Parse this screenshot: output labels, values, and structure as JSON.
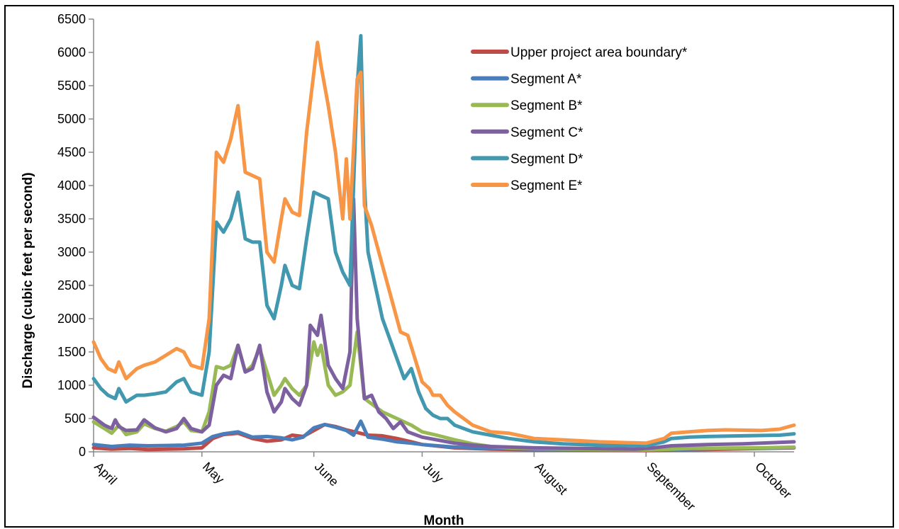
{
  "chart_data": {
    "type": "line",
    "xlabel": "Month",
    "ylabel": "Discharge (cubic feet per second)",
    "ylim": [
      0,
      6500
    ],
    "yticks": [
      0,
      500,
      1000,
      1500,
      2000,
      2500,
      3000,
      3500,
      4000,
      4500,
      5000,
      5500,
      6000,
      6500
    ],
    "x_categories": [
      "April",
      "May",
      "June",
      "July",
      "August",
      "September",
      "October"
    ],
    "x_unit": "day index from April 1",
    "xlim": [
      0,
      194
    ],
    "month_start_days": [
      0,
      30,
      61,
      91,
      122,
      153,
      183
    ],
    "grid": false,
    "legend_position": "top-right",
    "series": [
      {
        "name": "Upper project area boundary*",
        "color": "#be4b48",
        "points": [
          [
            0,
            60
          ],
          [
            5,
            40
          ],
          [
            10,
            50
          ],
          [
            15,
            35
          ],
          [
            20,
            40
          ],
          [
            25,
            45
          ],
          [
            30,
            60
          ],
          [
            33,
            200
          ],
          [
            36,
            260
          ],
          [
            40,
            280
          ],
          [
            44,
            200
          ],
          [
            48,
            160
          ],
          [
            52,
            180
          ],
          [
            55,
            250
          ],
          [
            58,
            230
          ],
          [
            61,
            320
          ],
          [
            64,
            410
          ],
          [
            67,
            380
          ],
          [
            70,
            330
          ],
          [
            73,
            290
          ],
          [
            76,
            250
          ],
          [
            80,
            240
          ],
          [
            84,
            200
          ],
          [
            88,
            150
          ],
          [
            91,
            110
          ],
          [
            100,
            60
          ],
          [
            110,
            40
          ],
          [
            122,
            30
          ],
          [
            135,
            25
          ],
          [
            153,
            20
          ],
          [
            165,
            30
          ],
          [
            175,
            40
          ],
          [
            185,
            50
          ],
          [
            194,
            60
          ]
        ]
      },
      {
        "name": "Segment A*",
        "color": "#4a7ebb",
        "points": [
          [
            0,
            110
          ],
          [
            5,
            80
          ],
          [
            10,
            100
          ],
          [
            15,
            90
          ],
          [
            20,
            95
          ],
          [
            25,
            100
          ],
          [
            30,
            130
          ],
          [
            33,
            230
          ],
          [
            36,
            270
          ],
          [
            40,
            300
          ],
          [
            44,
            220
          ],
          [
            48,
            230
          ],
          [
            52,
            210
          ],
          [
            55,
            180
          ],
          [
            58,
            220
          ],
          [
            61,
            360
          ],
          [
            64,
            410
          ],
          [
            67,
            370
          ],
          [
            70,
            320
          ],
          [
            72,
            250
          ],
          [
            74,
            460
          ],
          [
            76,
            220
          ],
          [
            80,
            190
          ],
          [
            84,
            150
          ],
          [
            88,
            130
          ],
          [
            91,
            110
          ],
          [
            100,
            70
          ],
          [
            110,
            50
          ],
          [
            122,
            40
          ],
          [
            135,
            35
          ],
          [
            153,
            30
          ],
          [
            165,
            40
          ],
          [
            175,
            50
          ],
          [
            185,
            55
          ],
          [
            194,
            65
          ]
        ]
      },
      {
        "name": "Segment B*",
        "color": "#98b954",
        "points": [
          [
            0,
            450
          ],
          [
            3,
            350
          ],
          [
            5,
            280
          ],
          [
            7,
            400
          ],
          [
            9,
            260
          ],
          [
            12,
            300
          ],
          [
            14,
            420
          ],
          [
            17,
            350
          ],
          [
            20,
            310
          ],
          [
            23,
            380
          ],
          [
            25,
            450
          ],
          [
            27,
            320
          ],
          [
            30,
            300
          ],
          [
            32,
            600
          ],
          [
            34,
            1280
          ],
          [
            36,
            1250
          ],
          [
            38,
            1300
          ],
          [
            40,
            1600
          ],
          [
            42,
            1200
          ],
          [
            44,
            1300
          ],
          [
            46,
            1550
          ],
          [
            48,
            1200
          ],
          [
            50,
            850
          ],
          [
            52,
            1000
          ],
          [
            53,
            1100
          ],
          [
            55,
            950
          ],
          [
            57,
            850
          ],
          [
            59,
            1000
          ],
          [
            61,
            1650
          ],
          [
            62,
            1450
          ],
          [
            63,
            1600
          ],
          [
            65,
            1000
          ],
          [
            67,
            850
          ],
          [
            69,
            900
          ],
          [
            71,
            1000
          ],
          [
            73,
            1800
          ],
          [
            75,
            800
          ],
          [
            77,
            720
          ],
          [
            80,
            600
          ],
          [
            84,
            500
          ],
          [
            88,
            400
          ],
          [
            91,
            300
          ],
          [
            95,
            250
          ],
          [
            100,
            180
          ],
          [
            105,
            120
          ],
          [
            110,
            80
          ],
          [
            115,
            60
          ],
          [
            122,
            50
          ],
          [
            130,
            40
          ],
          [
            140,
            35
          ],
          [
            153,
            30
          ],
          [
            160,
            40
          ],
          [
            165,
            50
          ],
          [
            175,
            55
          ],
          [
            185,
            60
          ],
          [
            194,
            70
          ]
        ]
      },
      {
        "name": "Segment C*",
        "color": "#7d60a0",
        "points": [
          [
            0,
            520
          ],
          [
            3,
            400
          ],
          [
            5,
            350
          ],
          [
            6,
            480
          ],
          [
            7,
            380
          ],
          [
            9,
            320
          ],
          [
            12,
            330
          ],
          [
            14,
            480
          ],
          [
            17,
            360
          ],
          [
            20,
            300
          ],
          [
            23,
            350
          ],
          [
            25,
            500
          ],
          [
            27,
            350
          ],
          [
            30,
            300
          ],
          [
            32,
            400
          ],
          [
            34,
            1000
          ],
          [
            36,
            1150
          ],
          [
            38,
            1100
          ],
          [
            40,
            1600
          ],
          [
            42,
            1200
          ],
          [
            44,
            1250
          ],
          [
            46,
            1600
          ],
          [
            48,
            900
          ],
          [
            50,
            600
          ],
          [
            52,
            750
          ],
          [
            53,
            950
          ],
          [
            55,
            800
          ],
          [
            57,
            700
          ],
          [
            59,
            1000
          ],
          [
            60,
            1900
          ],
          [
            62,
            1750
          ],
          [
            63,
            2050
          ],
          [
            65,
            1300
          ],
          [
            67,
            1100
          ],
          [
            69,
            950
          ],
          [
            71,
            1500
          ],
          [
            72,
            3800
          ],
          [
            73,
            2000
          ],
          [
            75,
            800
          ],
          [
            77,
            850
          ],
          [
            79,
            600
          ],
          [
            81,
            500
          ],
          [
            83,
            350
          ],
          [
            85,
            450
          ],
          [
            87,
            300
          ],
          [
            91,
            220
          ],
          [
            95,
            180
          ],
          [
            100,
            130
          ],
          [
            105,
            100
          ],
          [
            110,
            80
          ],
          [
            122,
            60
          ],
          [
            135,
            50
          ],
          [
            150,
            40
          ],
          [
            155,
            60
          ],
          [
            160,
            90
          ],
          [
            170,
            110
          ],
          [
            180,
            120
          ],
          [
            194,
            150
          ]
        ]
      },
      {
        "name": "Segment D*",
        "color": "#4198af",
        "points": [
          [
            0,
            1100
          ],
          [
            2,
            950
          ],
          [
            4,
            850
          ],
          [
            6,
            800
          ],
          [
            7,
            950
          ],
          [
            9,
            750
          ],
          [
            12,
            850
          ],
          [
            14,
            850
          ],
          [
            17,
            870
          ],
          [
            20,
            900
          ],
          [
            23,
            1050
          ],
          [
            25,
            1100
          ],
          [
            27,
            900
          ],
          [
            30,
            850
          ],
          [
            32,
            1500
          ],
          [
            34,
            3450
          ],
          [
            36,
            3300
          ],
          [
            38,
            3500
          ],
          [
            40,
            3900
          ],
          [
            42,
            3200
          ],
          [
            44,
            3150
          ],
          [
            46,
            3150
          ],
          [
            48,
            2200
          ],
          [
            50,
            2000
          ],
          [
            52,
            2500
          ],
          [
            53,
            2800
          ],
          [
            55,
            2500
          ],
          [
            57,
            2450
          ],
          [
            59,
            3200
          ],
          [
            61,
            3900
          ],
          [
            63,
            3850
          ],
          [
            65,
            3800
          ],
          [
            67,
            3000
          ],
          [
            69,
            2700
          ],
          [
            71,
            2500
          ],
          [
            73,
            5500
          ],
          [
            74,
            6250
          ],
          [
            75,
            4000
          ],
          [
            76,
            3000
          ],
          [
            78,
            2500
          ],
          [
            80,
            2000
          ],
          [
            82,
            1700
          ],
          [
            84,
            1400
          ],
          [
            86,
            1100
          ],
          [
            88,
            1250
          ],
          [
            90,
            900
          ],
          [
            92,
            650
          ],
          [
            94,
            550
          ],
          [
            96,
            500
          ],
          [
            98,
            500
          ],
          [
            100,
            400
          ],
          [
            105,
            300
          ],
          [
            110,
            250
          ],
          [
            115,
            200
          ],
          [
            122,
            150
          ],
          [
            130,
            120
          ],
          [
            140,
            100
          ],
          [
            153,
            90
          ],
          [
            158,
            150
          ],
          [
            160,
            200
          ],
          [
            165,
            220
          ],
          [
            170,
            230
          ],
          [
            180,
            240
          ],
          [
            190,
            250
          ],
          [
            194,
            270
          ]
        ]
      },
      {
        "name": "Segment E*",
        "color": "#f79646",
        "points": [
          [
            0,
            1650
          ],
          [
            2,
            1400
          ],
          [
            4,
            1250
          ],
          [
            6,
            1200
          ],
          [
            7,
            1350
          ],
          [
            9,
            1100
          ],
          [
            12,
            1250
          ],
          [
            14,
            1300
          ],
          [
            17,
            1350
          ],
          [
            20,
            1450
          ],
          [
            23,
            1550
          ],
          [
            25,
            1500
          ],
          [
            27,
            1300
          ],
          [
            30,
            1250
          ],
          [
            32,
            2000
          ],
          [
            34,
            4500
          ],
          [
            36,
            4350
          ],
          [
            38,
            4700
          ],
          [
            40,
            5200
          ],
          [
            42,
            4200
          ],
          [
            44,
            4150
          ],
          [
            46,
            4100
          ],
          [
            48,
            3000
          ],
          [
            50,
            2850
          ],
          [
            52,
            3500
          ],
          [
            53,
            3800
          ],
          [
            55,
            3600
          ],
          [
            57,
            3550
          ],
          [
            59,
            4800
          ],
          [
            61,
            5700
          ],
          [
            62,
            6150
          ],
          [
            63,
            5800
          ],
          [
            65,
            5200
          ],
          [
            67,
            4500
          ],
          [
            69,
            3500
          ],
          [
            70,
            4400
          ],
          [
            71,
            3500
          ],
          [
            73,
            5600
          ],
          [
            74,
            5700
          ],
          [
            75,
            3700
          ],
          [
            77,
            3400
          ],
          [
            79,
            3000
          ],
          [
            81,
            2600
          ],
          [
            83,
            2200
          ],
          [
            85,
            1800
          ],
          [
            87,
            1750
          ],
          [
            89,
            1400
          ],
          [
            91,
            1050
          ],
          [
            93,
            950
          ],
          [
            94,
            850
          ],
          [
            96,
            850
          ],
          [
            98,
            700
          ],
          [
            100,
            600
          ],
          [
            105,
            400
          ],
          [
            110,
            300
          ],
          [
            115,
            280
          ],
          [
            122,
            200
          ],
          [
            130,
            180
          ],
          [
            140,
            150
          ],
          [
            153,
            130
          ],
          [
            158,
            200
          ],
          [
            160,
            280
          ],
          [
            165,
            300
          ],
          [
            170,
            320
          ],
          [
            175,
            330
          ],
          [
            185,
            320
          ],
          [
            190,
            340
          ],
          [
            194,
            400
          ]
        ]
      }
    ]
  }
}
